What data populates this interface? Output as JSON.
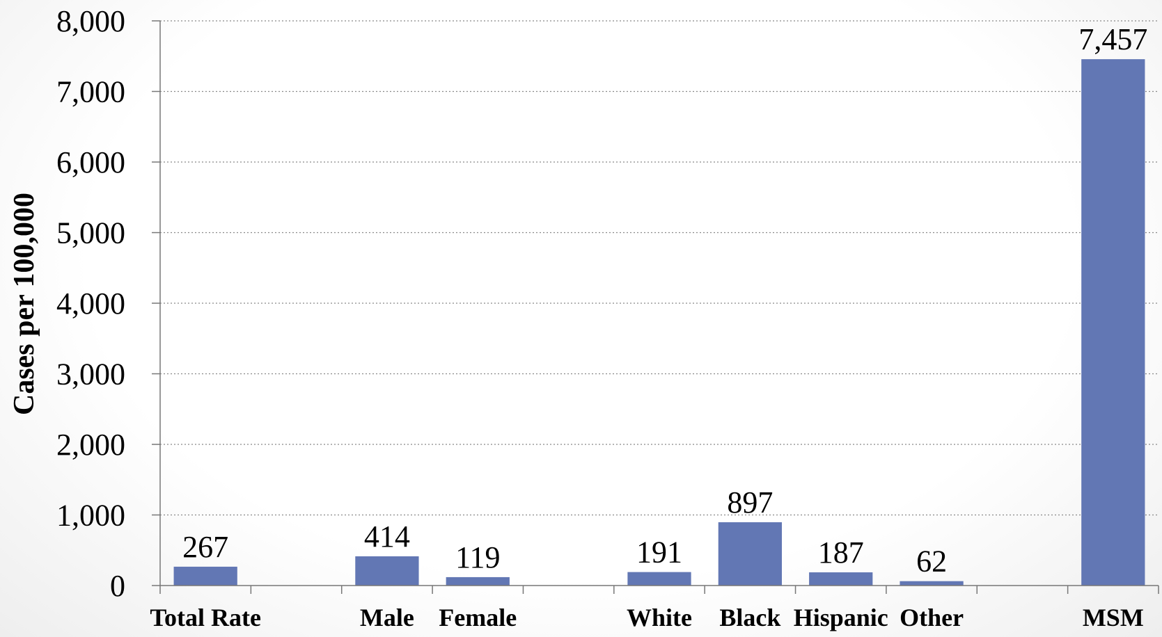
{
  "chart_data": {
    "type": "bar",
    "title": "",
    "xlabel": "",
    "ylabel": "Cases per 100,000",
    "ylim": [
      0,
      8000
    ],
    "yticks": [
      0,
      1000,
      2000,
      3000,
      4000,
      5000,
      6000,
      7000,
      8000
    ],
    "ytick_labels": [
      "0",
      "1,000",
      "2,000",
      "3,000",
      "4,000",
      "5,000",
      "6,000",
      "7,000",
      "8,000"
    ],
    "categories": [
      "Total Rate",
      "",
      "Male",
      "Female",
      "",
      "White",
      "Black",
      "Hispanic",
      "Other",
      "",
      "MSM"
    ],
    "values": [
      267,
      null,
      414,
      119,
      null,
      191,
      897,
      187,
      62,
      null,
      7457
    ],
    "data_labels": [
      "267",
      "",
      "414",
      "119",
      "",
      "191",
      "897",
      "187",
      "62",
      "",
      "7,457"
    ],
    "bar_color": "#6277b4",
    "grid": true,
    "grid_style": "dotted",
    "legend": "none"
  }
}
